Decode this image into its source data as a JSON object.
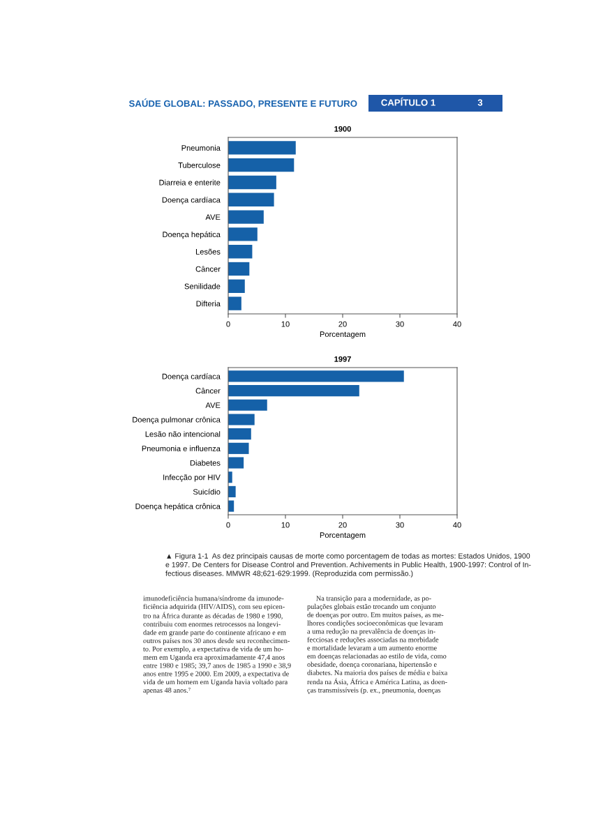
{
  "chart_data": [
    {
      "type": "bar",
      "orientation": "horizontal",
      "title": "1900",
      "xlabel": "Porcentagem",
      "categories": [
        "Pneumonia",
        "Tuberculose",
        "Diarreia e enterite",
        "Doença cardíaca",
        "AVE",
        "Doença hepática",
        "Lesões",
        "Câncer",
        "Senilidade",
        "Difteria"
      ],
      "values": [
        11.8,
        11.5,
        8.4,
        8.0,
        6.2,
        5.1,
        4.2,
        3.7,
        2.9,
        2.3
      ],
      "color": "#1561a8",
      "xlim": [
        0,
        40
      ],
      "xticks": [
        0,
        10,
        20,
        30,
        40
      ],
      "grid": false,
      "annotations": [
        "SAÚDE GLOBAL: PASSADO, PRESENTE E FUTURO",
        "CAPÍTULO 1",
        "3"
      ]
    },
    {
      "type": "bar",
      "orientation": "horizontal",
      "title": "1997",
      "xlabel": "Porcentagem",
      "categories": [
        "Doença cardíaca",
        "Câncer",
        "AVE",
        "Doença pulmonar crônica",
        "Lesão não intencional",
        "Pneumonia e influenza",
        "Diabetes",
        "Infecção por HIV",
        "Suicídio",
        "Doença hepática crônica"
      ],
      "values": [
        30.7,
        22.9,
        6.8,
        4.6,
        4.0,
        3.6,
        2.7,
        0.7,
        1.3,
        1.0
      ],
      "color": "#1561a8",
      "xlim": [
        0,
        40
      ],
      "xticks": [
        0,
        10,
        20,
        30,
        40
      ],
      "grid": false,
      "annotations": [
        "▲ Figura 1-1  As dez principais causas de morte como porcentagem de todas as mortes: Estados Unidos, 1900\ne 1997. De Centers for Disease Control and Prevention. Achivements in Public Health, 1900-1997: Control of In-\nfectious diseases. MMWR 48;621-629:1999. (Reproduzida com permissão.)",
        "imunodeficiência humana/síndrome da imunode-\nficiência adquirida (HIV/AIDS), com seu epicen-\ntro na África durante as décadas de 1980 e 1990,\ncontribuiu com enormes retrocessos na longevi-\ndade em grande parte do continente africano e em\noutros países nos 30 anos desde seu reconhecimen-\nto. Por exemplo, a expectativa de vida de um ho-\nmem em Uganda era aproximadamente 47,4 anos\nentre 1980 e 1985; 39,7 anos de 1985 a 1990 e 38,9\nanos entre 1995 e 2000. Em 2009, a expectativa de\nvida de um homem em Uganda havia voltado para\napenas 48 anos.⁷",
        "     Na transição para a modernidade, as po-\npulações globais estão trocando um conjunto\nde doenças por outro. Em muitos países, as me-\nlhores condições socioeconômicas que levaram\na uma redução na prevalência de doenças in-\nfecciosas e reduções associadas na morbidade\ne mortalidade levaram a um aumento enorme\nem doenças relacionadas ao estilo de vida, como\nobesidade, doença coronariana, hipertensão e\ndiabetes. Na maioria dos países de média e baixa\nrenda na Ásia, África e América Latina, as doen-\nças transmissíveis (p. ex., pneumonia, doenças"
      ]
    }
  ]
}
